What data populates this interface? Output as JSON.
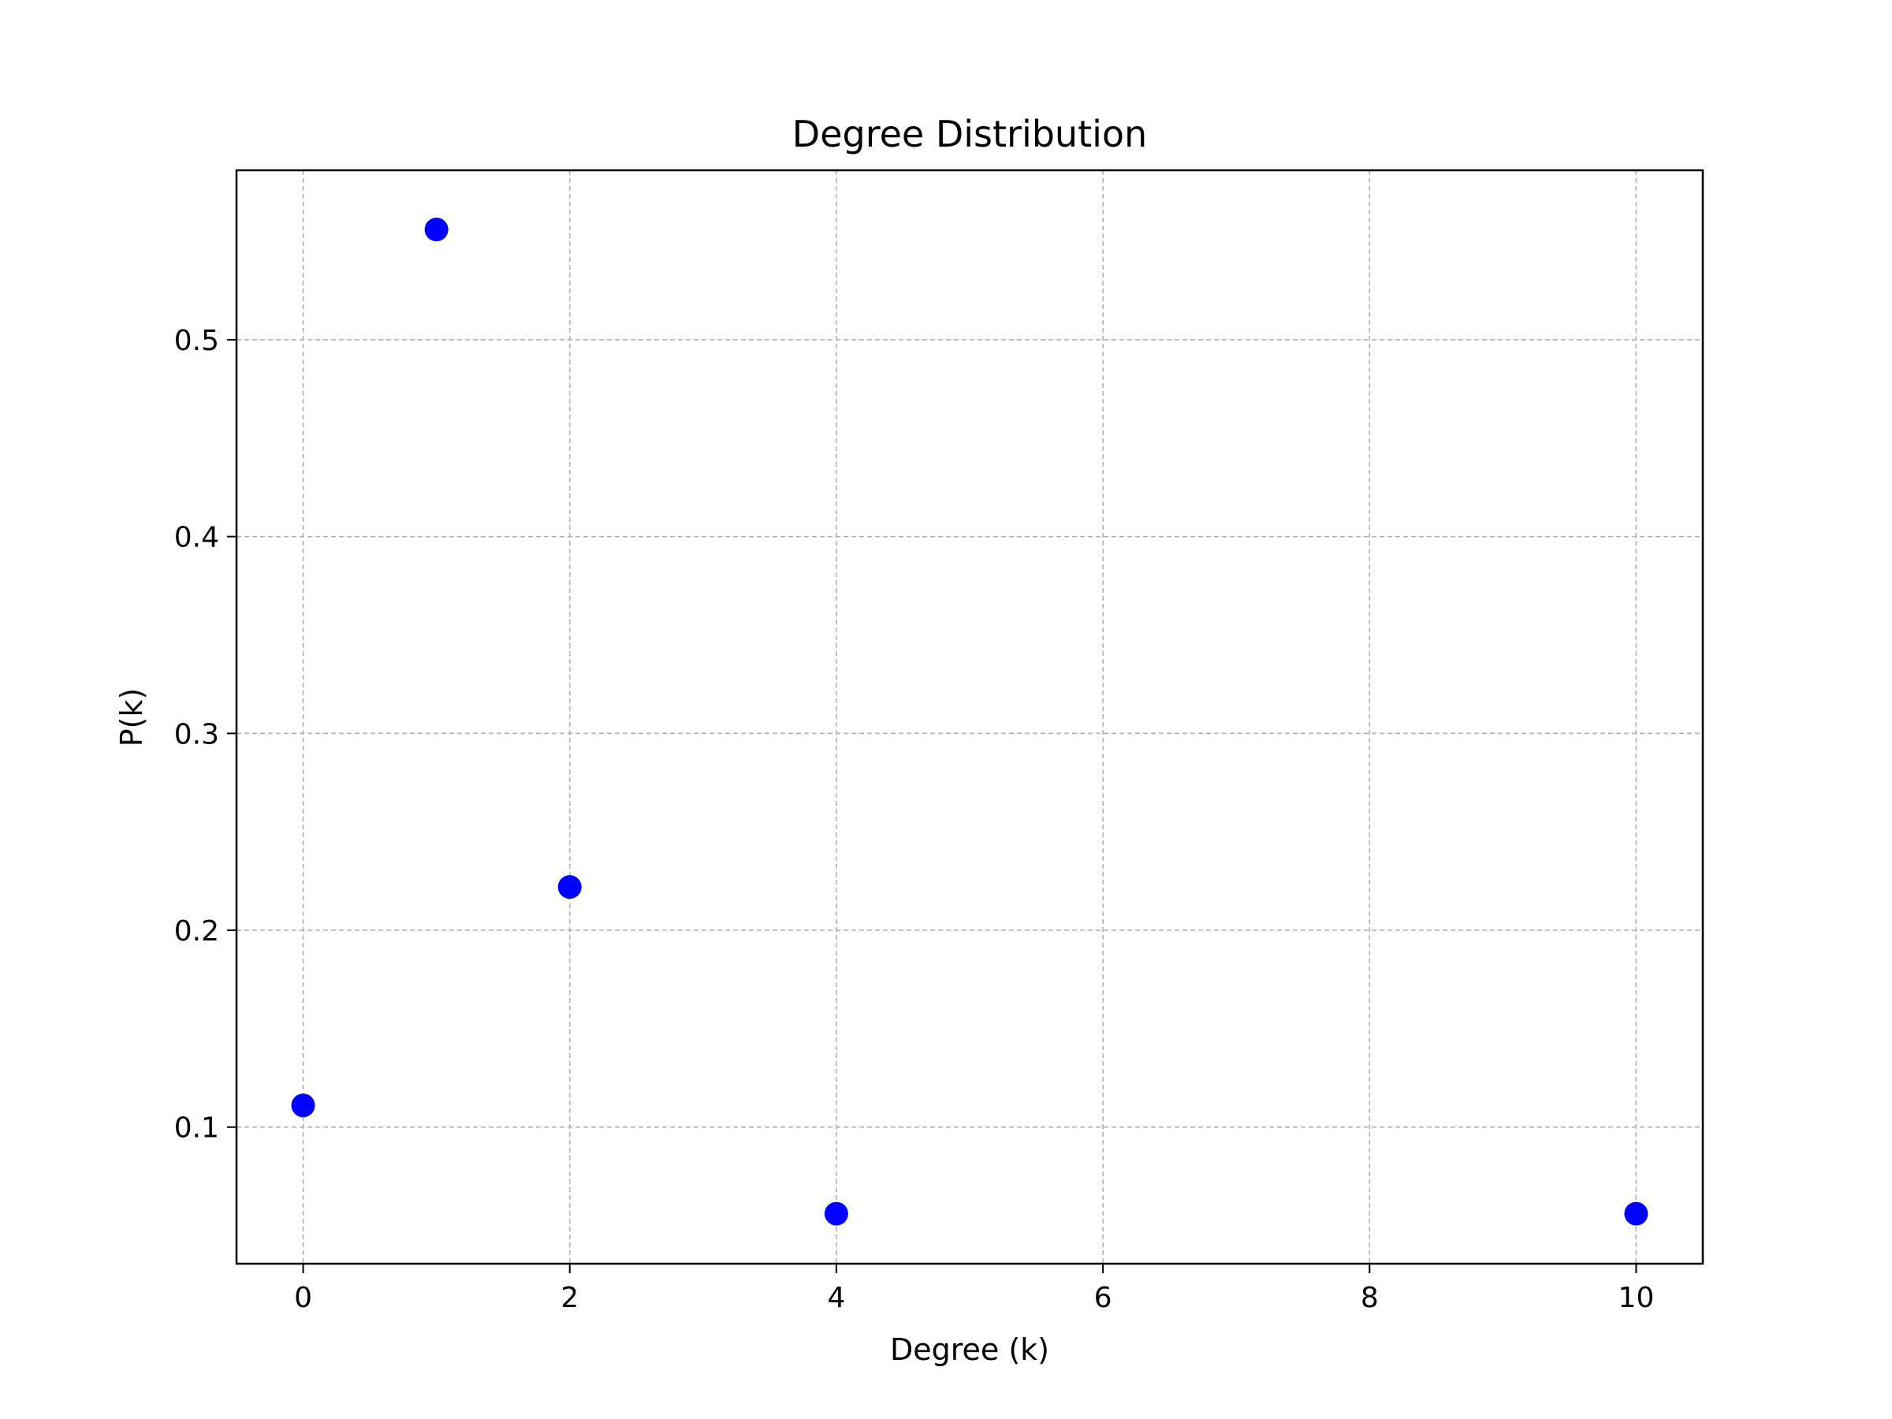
{
  "chart_data": {
    "type": "scatter",
    "title": "Degree Distribution",
    "xlabel": "Degree (k)",
    "ylabel": "P(k)",
    "xlim": [
      -0.5,
      10.5
    ],
    "ylim": [
      0.0306,
      0.5861
    ],
    "xticks": [
      0,
      2,
      4,
      6,
      8,
      10
    ],
    "xtick_labels": [
      "0",
      "2",
      "4",
      "6",
      "8",
      "10"
    ],
    "yticks": [
      0.1,
      0.2,
      0.3,
      0.4,
      0.5
    ],
    "ytick_labels": [
      "0.1",
      "0.2",
      "0.3",
      "0.4",
      "0.5"
    ],
    "grid": true,
    "marker_color": "#0000ff",
    "series": [
      {
        "x": [
          0,
          1,
          2,
          4,
          10
        ],
        "y": [
          0.111,
          0.556,
          0.222,
          0.056,
          0.056
        ]
      }
    ]
  }
}
